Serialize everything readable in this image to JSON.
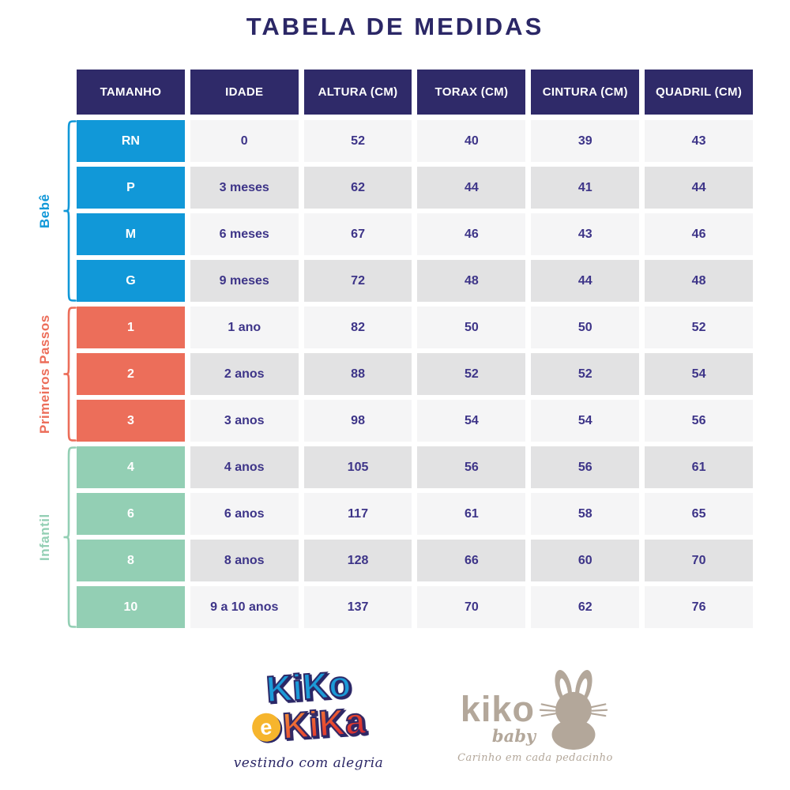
{
  "title": "TABELA DE MEDIDAS",
  "table": {
    "columns": [
      "TAMANHO",
      "IDADE",
      "ALTURA (CM)",
      "TORAX (CM)",
      "CINTURA (CM)",
      "QUADRIL (CM)"
    ],
    "groups": [
      {
        "label": "Bebê",
        "color": "#1198d8",
        "rows": [
          {
            "size": "RN",
            "age": "0",
            "height": "52",
            "chest": "40",
            "waist": "39",
            "hip": "43"
          },
          {
            "size": "P",
            "age": "3 meses",
            "height": "62",
            "chest": "44",
            "waist": "41",
            "hip": "44"
          },
          {
            "size": "M",
            "age": "6 meses",
            "height": "67",
            "chest": "46",
            "waist": "43",
            "hip": "46"
          },
          {
            "size": "G",
            "age": "9 meses",
            "height": "72",
            "chest": "48",
            "waist": "44",
            "hip": "48"
          }
        ]
      },
      {
        "label": "Primeiros Passos",
        "color": "#ec6e5a",
        "rows": [
          {
            "size": "1",
            "age": "1 ano",
            "height": "82",
            "chest": "50",
            "waist": "50",
            "hip": "52"
          },
          {
            "size": "2",
            "age": "2 anos",
            "height": "88",
            "chest": "52",
            "waist": "52",
            "hip": "54"
          },
          {
            "size": "3",
            "age": "3 anos",
            "height": "98",
            "chest": "54",
            "waist": "54",
            "hip": "56"
          }
        ]
      },
      {
        "label": "Infantil",
        "color": "#93cfb4",
        "rows": [
          {
            "size": "4",
            "age": "4 anos",
            "height": "105",
            "chest": "56",
            "waist": "56",
            "hip": "61"
          },
          {
            "size": "6",
            "age": "6 anos",
            "height": "117",
            "chest": "61",
            "waist": "58",
            "hip": "65"
          },
          {
            "size": "8",
            "age": "8 anos",
            "height": "128",
            "chest": "66",
            "waist": "60",
            "hip": "70"
          },
          {
            "size": "10",
            "age": "9 a 10 anos",
            "height": "137",
            "chest": "70",
            "waist": "62",
            "hip": "76"
          }
        ]
      }
    ],
    "row_colors": {
      "light": "#f5f5f6",
      "dark": "#e2e2e3"
    },
    "header_color": "#2f2a69",
    "cell_text_color": "#3d3488"
  },
  "colors": {
    "title_navy": "#2b2766",
    "blue": "#1198d8",
    "coral": "#ec6e5a",
    "mint": "#93cfb4",
    "yellow": "#f6b52d",
    "red": "#e0352f",
    "taupe": "#b3a79a"
  },
  "logos": {
    "kiko_e_kika": {
      "word1": "KiKo",
      "e": "e",
      "word2": "KiKa",
      "tagline": "vestindo com alegria"
    },
    "kiko_baby": {
      "name": "kiko",
      "sub": "baby",
      "tagline": "Carinho em cada pedacinho"
    }
  }
}
